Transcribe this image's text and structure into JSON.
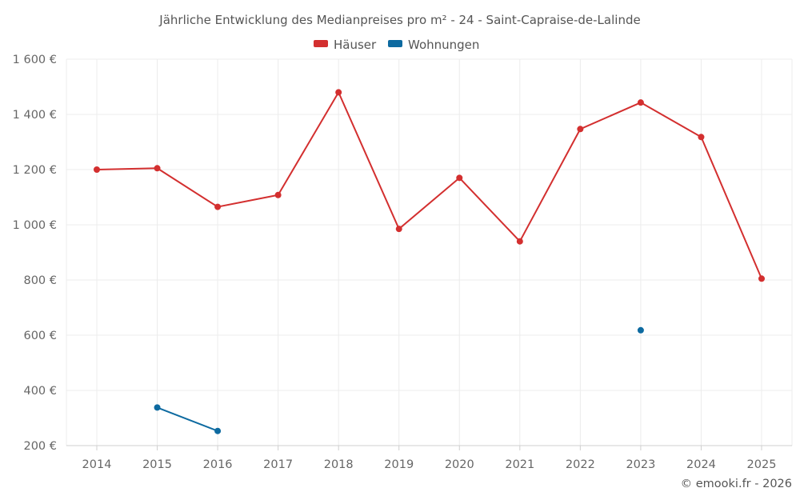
{
  "chart_data": {
    "type": "line",
    "title": "Jährliche Entwicklung des Medianpreises pro m² - 24 - Saint-Capraise-de-Lalinde",
    "categories": [
      "2014",
      "2015",
      "2016",
      "2017",
      "2018",
      "2019",
      "2020",
      "2021",
      "2022",
      "2023",
      "2024",
      "2025"
    ],
    "series": [
      {
        "name": "Häuser",
        "color": "#d32f2f",
        "values": [
          1200,
          1205,
          1065,
          1108,
          1480,
          985,
          1170,
          940,
          1347,
          1443,
          1318,
          805
        ]
      },
      {
        "name": "Wohnungen",
        "color": "#0d6aa0",
        "values": [
          null,
          338,
          253,
          null,
          null,
          null,
          null,
          null,
          null,
          618,
          null,
          null
        ]
      }
    ],
    "yticks": [
      200,
      400,
      600,
      800,
      1000,
      1200,
      1400,
      1600
    ],
    "ytick_labels": [
      "200 €",
      "400 €",
      "600 €",
      "800 €",
      "1 000 €",
      "1 200 €",
      "1 400 €",
      "1 600 €"
    ],
    "ylim": [
      200,
      1600
    ],
    "xlabel": "",
    "ylabel": "",
    "legend_position": "top-center",
    "grid": true
  },
  "credit": "© emooki.fr - 2026"
}
